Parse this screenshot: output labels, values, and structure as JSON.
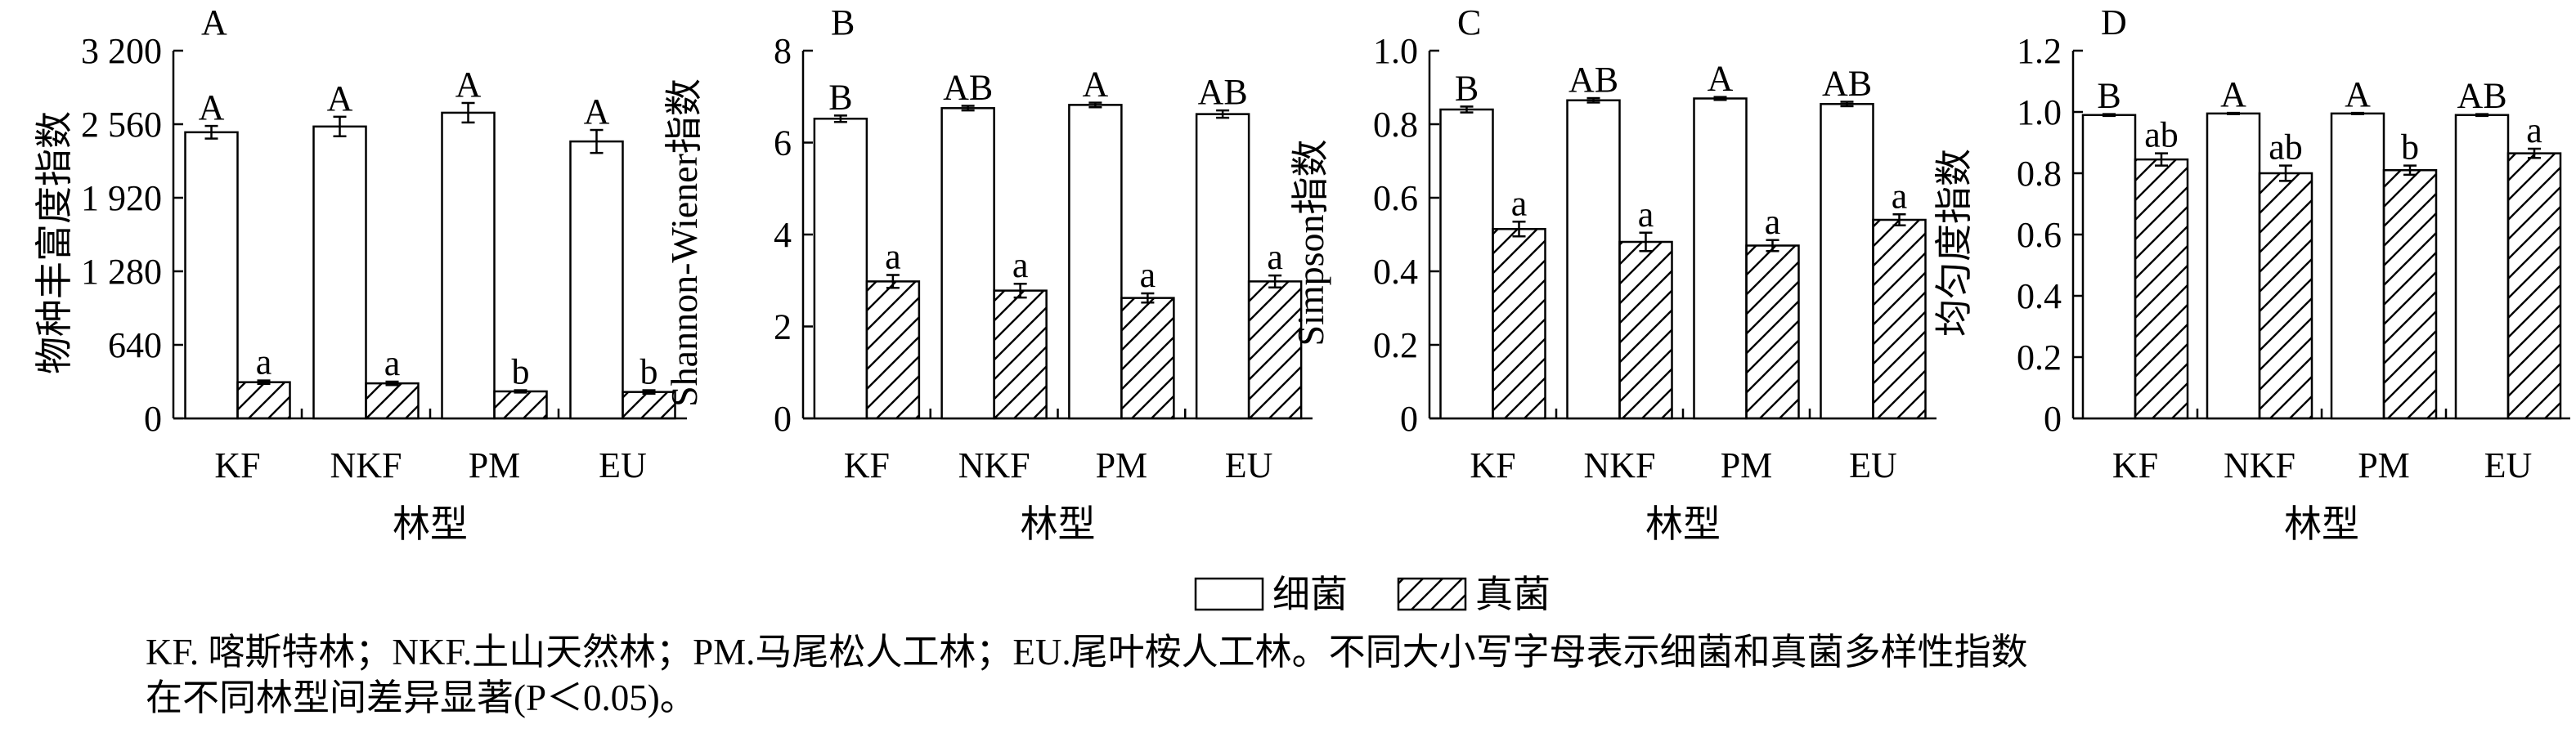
{
  "chart_data": [
    {
      "type": "bar",
      "panel_label": "A",
      "ylabel": "物种丰富度指数",
      "xlabel": "林型",
      "categories": [
        "KF",
        "NKF",
        "PM",
        "EU"
      ],
      "ylim": [
        0,
        3200
      ],
      "yticks": [
        0,
        640,
        1280,
        1920,
        2560,
        3200
      ],
      "ytick_labels": [
        "0",
        "640",
        "1 280",
        "1 920",
        "2 560",
        "3 200"
      ],
      "series": [
        {
          "name": "细菌",
          "values": [
            2490,
            2540,
            2660,
            2410
          ],
          "errors": [
            55,
            85,
            85,
            100
          ],
          "letters": [
            "A",
            "A",
            "A",
            "A"
          ]
        },
        {
          "name": "真菌",
          "values": [
            315,
            305,
            235,
            230
          ],
          "errors": [
            15,
            15,
            10,
            15
          ],
          "letters": [
            "a",
            "a",
            "b",
            "b"
          ]
        }
      ]
    },
    {
      "type": "bar",
      "panel_label": "B",
      "ylabel": "Shannon-Wiener指数",
      "xlabel": "林型",
      "categories": [
        "KF",
        "NKF",
        "PM",
        "EU"
      ],
      "ylim": [
        0,
        8
      ],
      "yticks": [
        0,
        2,
        4,
        6,
        8
      ],
      "ytick_labels": [
        "0",
        "2",
        "4",
        "6",
        "8"
      ],
      "series": [
        {
          "name": "细菌",
          "values": [
            6.52,
            6.75,
            6.82,
            6.62
          ],
          "errors": [
            0.07,
            0.05,
            0.05,
            0.08
          ],
          "letters": [
            "B",
            "AB",
            "A",
            "AB"
          ]
        },
        {
          "name": "真菌",
          "values": [
            2.98,
            2.78,
            2.62,
            2.98
          ],
          "errors": [
            0.14,
            0.15,
            0.1,
            0.13
          ],
          "letters": [
            "a",
            "a",
            "a",
            "a"
          ]
        }
      ]
    },
    {
      "type": "bar",
      "panel_label": "C",
      "ylabel": "Simpson指数",
      "xlabel": "林型",
      "categories": [
        "KF",
        "NKF",
        "PM",
        "EU"
      ],
      "ylim": [
        0,
        1.0
      ],
      "yticks": [
        0,
        0.2,
        0.4,
        0.6,
        0.8,
        1.0
      ],
      "ytick_labels": [
        "0",
        "0.2",
        "0.4",
        "0.6",
        "0.8",
        "1.0"
      ],
      "series": [
        {
          "name": "细菌",
          "values": [
            0.84,
            0.865,
            0.87,
            0.855
          ],
          "errors": [
            0.008,
            0.006,
            0.004,
            0.006
          ],
          "letters": [
            "B",
            "AB",
            "A",
            "AB"
          ]
        },
        {
          "name": "真菌",
          "values": [
            0.515,
            0.48,
            0.47,
            0.54
          ],
          "errors": [
            0.02,
            0.025,
            0.015,
            0.015
          ],
          "letters": [
            "a",
            "a",
            "a",
            "a"
          ]
        }
      ]
    },
    {
      "type": "bar",
      "panel_label": "D",
      "ylabel": "均匀度指数",
      "xlabel": "林型",
      "categories": [
        "KF",
        "NKF",
        "PM",
        "EU"
      ],
      "ylim": [
        0,
        1.2
      ],
      "yticks": [
        0,
        0.2,
        0.4,
        0.6,
        0.8,
        1.0,
        1.2
      ],
      "ytick_labels": [
        "0",
        "0.2",
        "0.4",
        "0.6",
        "0.8",
        "1.0",
        "1.2"
      ],
      "series": [
        {
          "name": "细菌",
          "values": [
            0.99,
            0.995,
            0.995,
            0.99
          ],
          "errors": [
            0.003,
            0.002,
            0.002,
            0.003
          ],
          "letters": [
            "B",
            "A",
            "A",
            "AB"
          ]
        },
        {
          "name": "真菌",
          "values": [
            0.845,
            0.8,
            0.81,
            0.865
          ],
          "errors": [
            0.02,
            0.025,
            0.015,
            0.015
          ],
          "letters": [
            "ab",
            "ab",
            "b",
            "a"
          ]
        }
      ]
    }
  ],
  "legend": [
    {
      "name": "细菌",
      "pattern": "none"
    },
    {
      "name": "真菌",
      "pattern": "hatch"
    }
  ],
  "caption": {
    "line1": "KF. 喀斯特林；NKF.土山天然林；PM.马尾松人工林；EU.尾叶桉人工林。不同大小写字母表示细菌和真菌多样性指数",
    "line2": "在不同林型间差异显著(P＜0.05)。"
  }
}
